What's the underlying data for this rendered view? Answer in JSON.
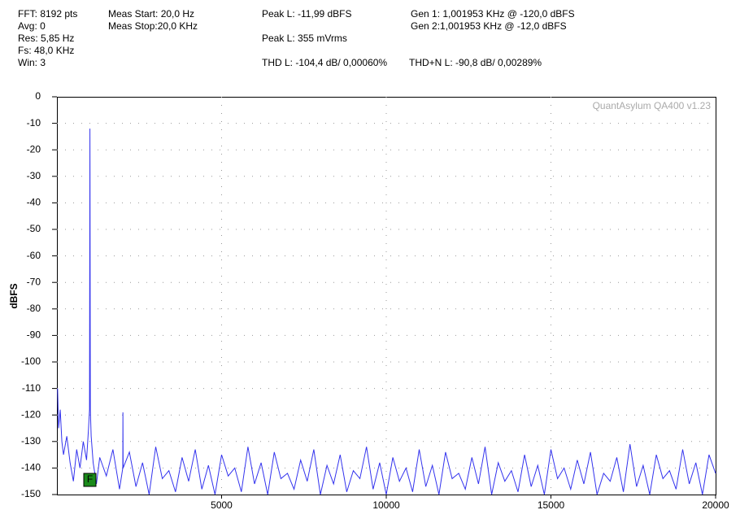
{
  "header": {
    "lines": [
      {
        "text": "FFT: 8192 pts",
        "x": 0
      },
      {
        "text": "Avg: 0",
        "x": 0
      }
    ]
  },
  "chart_data": {
    "type": "line",
    "info": [
      "FFT: 8192 pts",
      "Avg: 0",
      "Res: 5,85 Hz",
      "Fs: 48,0 KHz",
      "Win: 3",
      "Meas Start: 20,0 Hz",
      "Meas Stop:20,0 KHz",
      "Peak L: -11,99 dBFS",
      "Peak L: 355 mVrms",
      "THD L: -104,4 dB/ 0,00060%",
      "THD+N L: -90,8 dB/ 0,00289%",
      "Gen 1: 1,001953 KHz @ -120,0  dBFS",
      "Gen 2:1,001953 KHz @ -12,0  dBFS"
    ],
    "watermark": "QuantAsylum QA400 v1.23",
    "ylabel": "dBFS",
    "marker_label": "F",
    "color": "#3333ee",
    "grid": true,
    "xlim": [
      0,
      20000
    ],
    "xticks": [
      5000,
      10000,
      15000,
      20000
    ],
    "ylim": [
      -150,
      0
    ],
    "yticks": [
      0,
      -10,
      -20,
      -30,
      -40,
      -50,
      -60,
      -70,
      -80,
      -90,
      -100,
      -110,
      -120,
      -130,
      -140,
      -150
    ],
    "x": [
      20,
      50,
      100,
      150,
      200,
      300,
      400,
      500,
      600,
      700,
      800,
      900,
      960,
      990,
      1002,
      1015,
      1040,
      1100,
      1200,
      1300,
      1500,
      1700,
      1900,
      2000,
      2004,
      2010,
      2200,
      2400,
      2600,
      2800,
      3000,
      3200,
      3400,
      3600,
      3800,
      4000,
      4200,
      4400,
      4600,
      4800,
      5000,
      5200,
      5400,
      5600,
      5800,
      6000,
      6200,
      6400,
      6600,
      6800,
      7000,
      7200,
      7400,
      7600,
      7800,
      8000,
      8200,
      8400,
      8600,
      8800,
      9000,
      9200,
      9400,
      9600,
      9800,
      10000,
      10200,
      10400,
      10600,
      10800,
      11000,
      11200,
      11400,
      11600,
      11800,
      12000,
      12200,
      12400,
      12600,
      12800,
      13000,
      13200,
      13400,
      13600,
      13800,
      14000,
      14200,
      14400,
      14600,
      14800,
      15000,
      15200,
      15400,
      15600,
      15800,
      16000,
      16200,
      16400,
      16600,
      16800,
      17000,
      17200,
      17400,
      17600,
      17800,
      18000,
      18200,
      18400,
      18600,
      18800,
      19000,
      19200,
      19400,
      19600,
      19800,
      20000
    ],
    "values": [
      -110,
      -125,
      -118,
      -130,
      -135,
      -128,
      -138,
      -145,
      -133,
      -140,
      -130,
      -137,
      -125,
      -118,
      -11.99,
      -118,
      -128,
      -138,
      -146,
      -136,
      -143,
      -133,
      -148,
      -140,
      -119,
      -140,
      -134,
      -147,
      -138,
      -150,
      -132,
      -144,
      -141,
      -149,
      -136,
      -145,
      -133,
      -148,
      -139,
      -150,
      -135,
      -143,
      -140,
      -149,
      -132,
      -146,
      -138,
      -150,
      -134,
      -144,
      -142,
      -148,
      -137,
      -145,
      -133,
      -150,
      -139,
      -146,
      -135,
      -149,
      -141,
      -144,
      -132,
      -148,
      -138,
      -150,
      -136,
      -145,
      -140,
      -149,
      -133,
      -147,
      -139,
      -150,
      -134,
      -144,
      -142,
      -148,
      -136,
      -146,
      -132,
      -150,
      -138,
      -145,
      -141,
      -149,
      -135,
      -147,
      -139,
      -150,
      -133,
      -144,
      -140,
      -148,
      -137,
      -146,
      -134,
      -150,
      -142,
      -145,
      -136,
      -149,
      -131,
      -147,
      -139,
      -150,
      -135,
      -144,
      -141,
      -148,
      -133,
      -146,
      -138,
      -150,
      -135,
      -142
    ]
  }
}
